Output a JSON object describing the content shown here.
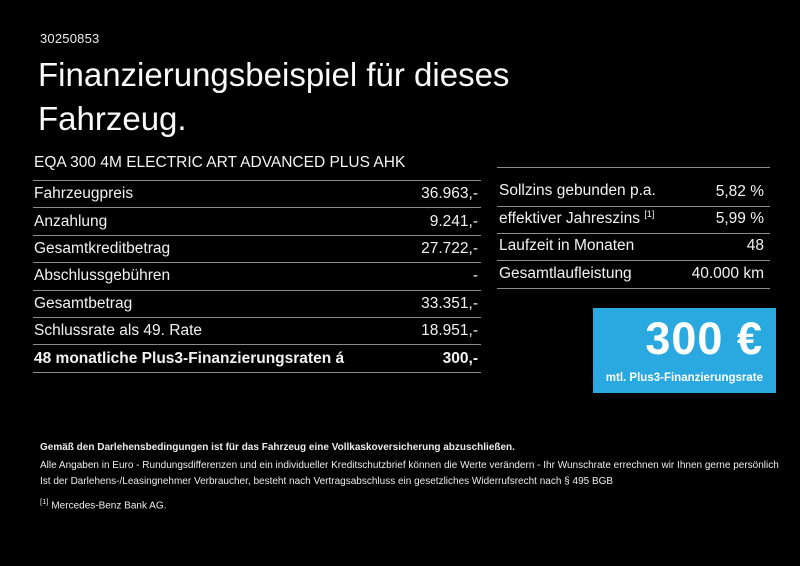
{
  "page": {
    "ref_number": "30250853",
    "title": "Finanzierungsbeispiel für dieses Fahrzeug."
  },
  "colors": {
    "background": "#000000",
    "text": "#f2f2f2",
    "divider": "#8c8c8c",
    "rate_box_blue": "#29a9e0"
  },
  "vehicle_table": {
    "header": "EQA 300 4M ELECTRIC ART ADVANCED PLUS AHK",
    "rows": [
      {
        "label": "Fahrzeugpreis",
        "value": "36.963,-"
      },
      {
        "label": "Anzahlung",
        "value": "9.241,-"
      },
      {
        "label": "Gesamtkreditbetrag",
        "value": "27.722,-"
      },
      {
        "label": "Abschlussgebühren",
        "value": "-"
      },
      {
        "label": "Gesamtbetrag",
        "value": "33.351,-"
      },
      {
        "label": "Schlussrate als 49. Rate",
        "value": "18.951,-"
      },
      {
        "label": "48 monatliche Plus3-Finanzierungsraten á",
        "value": "300,-"
      }
    ]
  },
  "conditions_table": {
    "rows": [
      {
        "label": "Sollzins gebunden p.a.",
        "sup": "",
        "value": "5,82 %"
      },
      {
        "label": "effektiver Jahreszins",
        "sup": "[1]",
        "value": "5,99 %"
      },
      {
        "label": "Laufzeit in Monaten",
        "sup": "",
        "value": "48"
      },
      {
        "label": "Gesamtlaufleistung",
        "sup": "",
        "value": "40.000 km"
      }
    ]
  },
  "rate_box": {
    "amount": "300 €",
    "caption": "mtl. Plus3-Finanzierungsrate"
  },
  "footer": {
    "bold_note": "Gemäß den Darlehensbedingungen ist für das Fahrzeug eine Vollkaskoversicherung abzuschließen.",
    "note_line1": "Alle Angaben in Euro - Rundungsdifferenzen und ein individueller Kreditschutzbrief können die Werte verändern - Ihr Wunschrate errechnen wir Ihnen gerne persönlich",
    "note_line2": "Ist der Darlehens-/Leasingnehmer Verbraucher, besteht nach Vertragsabschluss ein gesetzliches Widerrufsrecht nach § 495 BGB",
    "footnote_marker": "[1]",
    "footnote_text": "Mercedes-Benz Bank AG."
  }
}
